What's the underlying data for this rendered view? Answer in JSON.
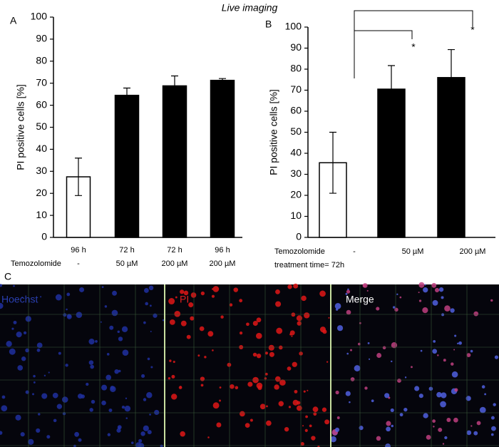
{
  "title": "Live imaging",
  "panel_labels": [
    "A",
    "B",
    "C"
  ],
  "image_labels": [
    "Hoechst",
    "PI",
    "Merge"
  ],
  "chart_data": [
    {
      "type": "bar",
      "y_label": "PI positive cells [%]",
      "row_label": "Temozolomide",
      "categories": [
        "96 h",
        "72 h",
        "72 h",
        "96 h"
      ],
      "treatments": [
        "-",
        "50 µM",
        "200 µM",
        "200 µM"
      ],
      "values": [
        27.5,
        64.5,
        68.8,
        71.3
      ],
      "errors": [
        8.5,
        3.3,
        4.5,
        0.8
      ],
      "colors": [
        "#ffffff",
        "#000000",
        "#000000",
        "#000000"
      ],
      "ylim": [
        0,
        100
      ],
      "yticks": [
        0,
        10,
        20,
        30,
        40,
        50,
        60,
        70,
        80,
        90,
        100
      ]
    },
    {
      "type": "bar",
      "y_label": "PI positive cells [%]",
      "row_label": "Temozolomide",
      "note": "treatment time= 72h",
      "categories": [
        "-",
        "50 µM",
        "200 µM"
      ],
      "values": [
        35.5,
        70.5,
        76
      ],
      "errors": [
        14.5,
        11.2,
        13.3
      ],
      "colors": [
        "#ffffff",
        "#000000",
        "#000000"
      ],
      "annotations": [
        "*",
        "*"
      ],
      "ylim": [
        0,
        100
      ],
      "yticks": [
        0,
        10,
        20,
        30,
        40,
        50,
        60,
        70,
        80,
        90,
        100
      ]
    }
  ]
}
